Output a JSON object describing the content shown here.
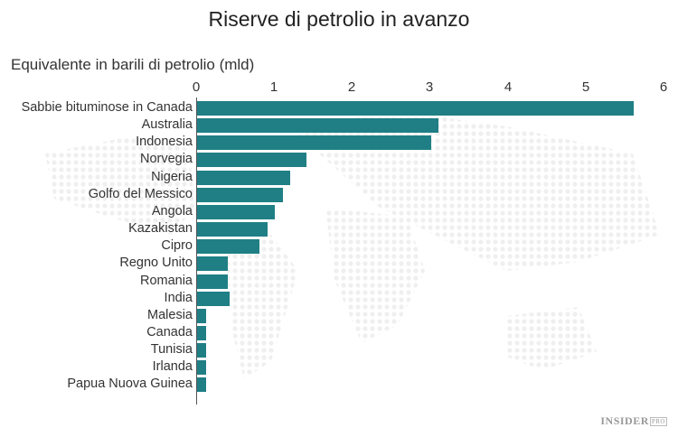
{
  "chart": {
    "title": "Riserve di petrolio in avanzo",
    "subtitle": "Equivalente in barili di petrolio (mld)",
    "ticks": [
      "0",
      "1",
      "2",
      "3",
      "4",
      "5",
      "6"
    ],
    "bar_color": "#1f7f85",
    "logo": "INSIDER",
    "logo_badge": "PRO"
  },
  "chart_data": {
    "type": "bar",
    "orientation": "horizontal",
    "title": "Riserve di petrolio in avanzo",
    "xlabel": "Equivalente in barili di petrolio (mld)",
    "ylabel": "",
    "xlim": [
      0,
      6
    ],
    "grid": false,
    "categories": [
      "Sabbie bituminose in Canada",
      "Australia",
      "Indonesia",
      "Norvegia",
      "Nigeria",
      "Golfo del Messico",
      "Angola",
      "Kazakistan",
      "Cipro",
      "Regno Unito",
      "Romania",
      "India",
      "Malesia",
      "Canada",
      "Tunisia",
      "Irlanda",
      "Papua Nuova Guinea"
    ],
    "values": [
      5.6,
      3.1,
      3.0,
      1.4,
      1.2,
      1.1,
      1.0,
      0.9,
      0.8,
      0.4,
      0.4,
      0.42,
      0.12,
      0.12,
      0.12,
      0.12,
      0.12
    ]
  }
}
